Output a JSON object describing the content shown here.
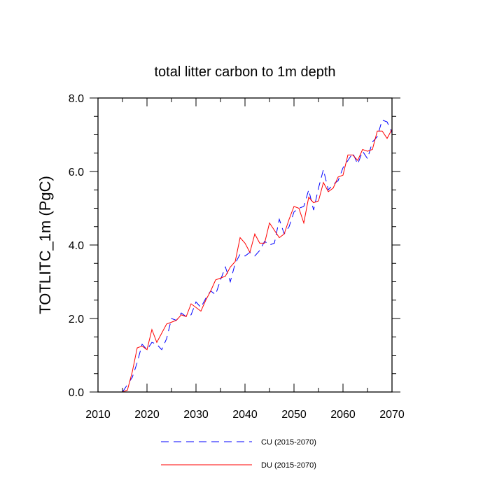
{
  "chart_data": {
    "type": "line",
    "title": "total litter carbon to 1m depth",
    "xlabel": "",
    "ylabel": "TOTLITC_1m  (PgC)",
    "xlim": [
      2010,
      2070
    ],
    "ylim": [
      0,
      8
    ],
    "x_ticks": [
      2010,
      2020,
      2030,
      2040,
      2050,
      2060,
      2070
    ],
    "x_tick_labels": [
      "2010",
      "2020",
      "2030",
      "2040",
      "2050",
      "2060",
      "2070"
    ],
    "y_ticks": [
      0,
      2,
      4,
      6,
      8
    ],
    "y_tick_labels": [
      "0.0",
      "2.0",
      "4.0",
      "6.0",
      "8.0"
    ],
    "grid": false,
    "legend_position": "bottom",
    "x": [
      2015,
      2016,
      2017,
      2018,
      2019,
      2020,
      2021,
      2022,
      2023,
      2024,
      2025,
      2026,
      2027,
      2028,
      2029,
      2030,
      2031,
      2032,
      2033,
      2034,
      2035,
      2036,
      2037,
      2038,
      2039,
      2040,
      2041,
      2042,
      2043,
      2044,
      2045,
      2046,
      2047,
      2048,
      2049,
      2050,
      2051,
      2052,
      2053,
      2054,
      2055,
      2056,
      2057,
      2058,
      2059,
      2060,
      2061,
      2062,
      2063,
      2064,
      2065,
      2066,
      2067,
      2068,
      2069,
      2070
    ],
    "series": [
      {
        "name": "CU (2015-2070)",
        "color": "#0000ff",
        "dash": "dashed",
        "values": [
          0.0,
          0.2,
          0.4,
          0.8,
          1.3,
          1.15,
          1.35,
          1.3,
          1.15,
          1.45,
          2.0,
          1.95,
          2.15,
          2.05,
          2.1,
          2.45,
          2.3,
          2.55,
          2.75,
          2.65,
          3.05,
          3.4,
          3.0,
          3.5,
          3.75,
          3.7,
          3.8,
          3.7,
          3.85,
          4.1,
          4.0,
          4.05,
          4.7,
          4.3,
          4.5,
          4.9,
          5.0,
          5.05,
          5.5,
          4.95,
          5.55,
          6.05,
          5.5,
          5.65,
          5.75,
          6.1,
          6.3,
          6.5,
          6.2,
          6.55,
          6.35,
          6.8,
          6.95,
          7.4,
          7.35,
          7.05
        ]
      },
      {
        "name": "DU (2015-2070)",
        "color": "#ff0000",
        "dash": "solid",
        "values": [
          0.0,
          0.05,
          0.55,
          1.2,
          1.25,
          1.15,
          1.7,
          1.35,
          1.6,
          1.85,
          1.9,
          1.95,
          2.1,
          2.05,
          2.4,
          2.3,
          2.2,
          2.5,
          2.75,
          3.05,
          3.1,
          3.15,
          3.4,
          3.55,
          4.2,
          4.05,
          3.8,
          4.3,
          4.05,
          4.05,
          4.6,
          4.4,
          4.2,
          4.3,
          4.7,
          5.05,
          5.0,
          4.6,
          5.3,
          5.15,
          5.2,
          5.7,
          5.45,
          5.55,
          5.85,
          5.9,
          6.45,
          6.45,
          6.3,
          6.6,
          6.55,
          6.6,
          7.1,
          7.1,
          6.9,
          7.15
        ]
      }
    ]
  }
}
